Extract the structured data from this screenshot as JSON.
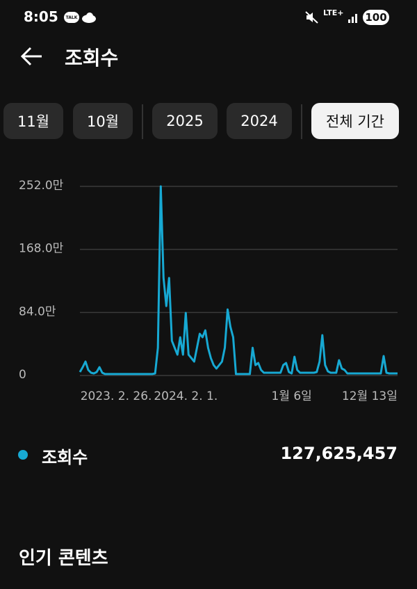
{
  "status_bar": {
    "time": "8:05",
    "app_icon": "TALK",
    "network": "LTE+",
    "battery": "100"
  },
  "header": {
    "title": "조회수"
  },
  "filters": {
    "chips": [
      "11월",
      "10월",
      "2025",
      "2024",
      "전체 기간"
    ],
    "selected": 4
  },
  "chart_data": {
    "type": "line",
    "xlim": [
      0,
      114
    ],
    "xticks": [
      {
        "value": 13,
        "label": "2023. 2. 26."
      },
      {
        "value": 38,
        "label": "2024. 2. 1."
      },
      {
        "value": 76,
        "label": "1월 6일"
      },
      {
        "value": 104,
        "label": "12월 13일"
      }
    ],
    "ylim": [
      0,
      2520000
    ],
    "yticks": [
      0,
      {
        "value": 840000,
        "label": "84.0만"
      },
      {
        "value": 1680000,
        "label": "168.0만"
      },
      {
        "value": 2520000,
        "label": "252.0만"
      }
    ],
    "grid": true,
    "series": [
      {
        "name": "조회수",
        "color": "#17a9d3",
        "values": [
          46000,
          111000,
          185000,
          74000,
          37000,
          28000,
          46000,
          111000,
          37000,
          19000,
          19000,
          19000,
          19000,
          19000,
          19000,
          19000,
          19000,
          19000,
          19000,
          19000,
          19000,
          19000,
          19000,
          19000,
          19000,
          19000,
          19000,
          28000,
          370000,
          2520000,
          1300000,
          926000,
          1300000,
          463000,
          370000,
          278000,
          510000,
          278000,
          834000,
          278000,
          232000,
          185000,
          370000,
          556000,
          510000,
          602000,
          370000,
          232000,
          139000,
          93000,
          139000,
          185000,
          370000,
          880000,
          649000,
          510000,
          19000,
          19000,
          19000,
          19000,
          19000,
          19000,
          370000,
          139000,
          167000,
          74000,
          37000,
          37000,
          37000,
          37000,
          37000,
          37000,
          37000,
          139000,
          167000,
          46000,
          28000,
          250000,
          74000,
          37000,
          37000,
          37000,
          37000,
          37000,
          37000,
          46000,
          185000,
          537000,
          139000,
          56000,
          37000,
          37000,
          37000,
          204000,
          93000,
          74000,
          28000,
          28000,
          28000,
          28000,
          28000,
          28000,
          28000,
          28000,
          28000,
          28000,
          28000,
          28000,
          28000,
          259000,
          37000,
          28000,
          28000,
          28000,
          28000
        ]
      }
    ]
  },
  "summary": {
    "total": "127,625,457"
  },
  "section": {
    "title": "인기 콘텐츠"
  }
}
